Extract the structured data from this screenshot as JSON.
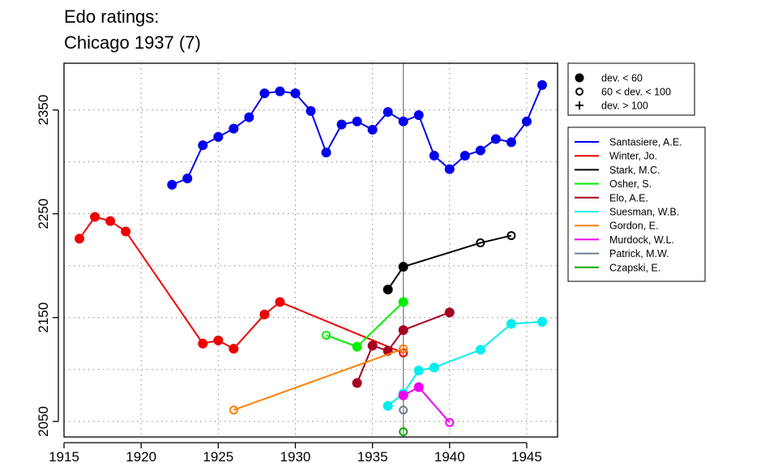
{
  "chart_data": {
    "type": "line",
    "title": "Edo ratings:",
    "subtitle": "Chicago 1937 (7)",
    "xlim": [
      1915,
      1947
    ],
    "ylim": [
      2035,
      2395
    ],
    "x_ticks": [
      "1915",
      "1920",
      "1925",
      "1930",
      "1935",
      "1940",
      "1945"
    ],
    "y_ticks": [
      "2050",
      "2150",
      "2250",
      "2350"
    ],
    "grid": true,
    "reference_year": 1937,
    "marker_legend": [
      {
        "symbol": "filled",
        "label": "dev. < 60"
      },
      {
        "symbol": "open",
        "label": "60 < dev. < 100"
      },
      {
        "symbol": "plus",
        "label": "dev. > 100"
      }
    ],
    "series": [
      {
        "name": "Santasiere, A.E.",
        "color": "#0000ee",
        "points": [
          {
            "x": 1922,
            "y": 2278,
            "m": "filled"
          },
          {
            "x": 1923,
            "y": 2284,
            "m": "filled"
          },
          {
            "x": 1924,
            "y": 2316,
            "m": "filled"
          },
          {
            "x": 1925,
            "y": 2324,
            "m": "filled"
          },
          {
            "x": 1926,
            "y": 2332,
            "m": "filled"
          },
          {
            "x": 1927,
            "y": 2343,
            "m": "filled"
          },
          {
            "x": 1928,
            "y": 2366,
            "m": "filled"
          },
          {
            "x": 1929,
            "y": 2368,
            "m": "filled"
          },
          {
            "x": 1930,
            "y": 2366,
            "m": "filled"
          },
          {
            "x": 1931,
            "y": 2349,
            "m": "filled"
          },
          {
            "x": 1932,
            "y": 2309,
            "m": "filled"
          },
          {
            "x": 1933,
            "y": 2336,
            "m": "filled"
          },
          {
            "x": 1934,
            "y": 2339,
            "m": "filled"
          },
          {
            "x": 1935,
            "y": 2331,
            "m": "filled"
          },
          {
            "x": 1936,
            "y": 2348,
            "m": "filled"
          },
          {
            "x": 1937,
            "y": 2339,
            "m": "filled"
          },
          {
            "x": 1938,
            "y": 2345,
            "m": "filled"
          },
          {
            "x": 1939,
            "y": 2306,
            "m": "filled"
          },
          {
            "x": 1940,
            "y": 2293,
            "m": "filled"
          },
          {
            "x": 1941,
            "y": 2306,
            "m": "filled"
          },
          {
            "x": 1942,
            "y": 2311,
            "m": "filled"
          },
          {
            "x": 1943,
            "y": 2322,
            "m": "filled"
          },
          {
            "x": 1944,
            "y": 2319,
            "m": "filled"
          },
          {
            "x": 1945,
            "y": 2339,
            "m": "filled"
          },
          {
            "x": 1946,
            "y": 2374,
            "m": "filled"
          }
        ]
      },
      {
        "name": "Winter, Jo.",
        "color": "#ee0000",
        "points": [
          {
            "x": 1916,
            "y": 2226,
            "m": "filled"
          },
          {
            "x": 1917,
            "y": 2247,
            "m": "filled"
          },
          {
            "x": 1918,
            "y": 2243,
            "m": "filled"
          },
          {
            "x": 1919,
            "y": 2233,
            "m": "filled"
          },
          {
            "x": 1924,
            "y": 2125,
            "m": "filled"
          },
          {
            "x": 1925,
            "y": 2128,
            "m": "filled"
          },
          {
            "x": 1926,
            "y": 2120,
            "m": "filled"
          },
          {
            "x": 1928,
            "y": 2153,
            "m": "filled"
          },
          {
            "x": 1929,
            "y": 2165,
            "m": "filled"
          },
          {
            "x": 1937,
            "y": 2116,
            "m": "open"
          }
        ]
      },
      {
        "name": "Stark, M.C.",
        "color": "#000000",
        "points": [
          {
            "x": 1936,
            "y": 2177,
            "m": "filled"
          },
          {
            "x": 1937,
            "y": 2199,
            "m": "filled"
          },
          {
            "x": 1942,
            "y": 2222,
            "m": "open"
          },
          {
            "x": 1944,
            "y": 2229,
            "m": "open"
          }
        ]
      },
      {
        "name": "Osher, S.",
        "color": "#00ee00",
        "points": [
          {
            "x": 1932,
            "y": 2133,
            "m": "open"
          },
          {
            "x": 1934,
            "y": 2122,
            "m": "filled"
          },
          {
            "x": 1937,
            "y": 2165,
            "m": "filled"
          }
        ]
      },
      {
        "name": "Elo, A.E.",
        "color": "#a50021",
        "points": [
          {
            "x": 1934,
            "y": 2087,
            "m": "filled"
          },
          {
            "x": 1935,
            "y": 2123,
            "m": "filled"
          },
          {
            "x": 1936,
            "y": 2118,
            "m": "filled"
          },
          {
            "x": 1937,
            "y": 2138,
            "m": "filled"
          },
          {
            "x": 1940,
            "y": 2155,
            "m": "filled"
          }
        ]
      },
      {
        "name": "Suesman, W.B.",
        "color": "#00eeee",
        "points": [
          {
            "x": 1936,
            "y": 2065,
            "m": "filled"
          },
          {
            "x": 1937,
            "y": 2077,
            "m": "filled"
          },
          {
            "x": 1938,
            "y": 2099,
            "m": "filled"
          },
          {
            "x": 1939,
            "y": 2102,
            "m": "filled"
          },
          {
            "x": 1942,
            "y": 2119,
            "m": "filled"
          },
          {
            "x": 1944,
            "y": 2144,
            "m": "filled"
          },
          {
            "x": 1946,
            "y": 2146,
            "m": "filled"
          }
        ]
      },
      {
        "name": "Gordon, E.",
        "color": "#ff7f00",
        "points": [
          {
            "x": 1926,
            "y": 2061,
            "m": "open"
          },
          {
            "x": 1937,
            "y": 2120,
            "m": "open"
          }
        ]
      },
      {
        "name": "Murdock, W.L.",
        "color": "#ee00ee",
        "points": [
          {
            "x": 1937,
            "y": 2075,
            "m": "filled"
          },
          {
            "x": 1938,
            "y": 2083,
            "m": "filled"
          },
          {
            "x": 1940,
            "y": 2049,
            "m": "open"
          }
        ]
      },
      {
        "name": "Patrick, M.W.",
        "color": "#708090",
        "points": [
          {
            "x": 1937,
            "y": 2061,
            "m": "open"
          }
        ]
      },
      {
        "name": "Czapski, E.",
        "color": "#00aa00",
        "points": [
          {
            "x": 1937,
            "y": 2040,
            "m": "open"
          }
        ]
      }
    ]
  }
}
